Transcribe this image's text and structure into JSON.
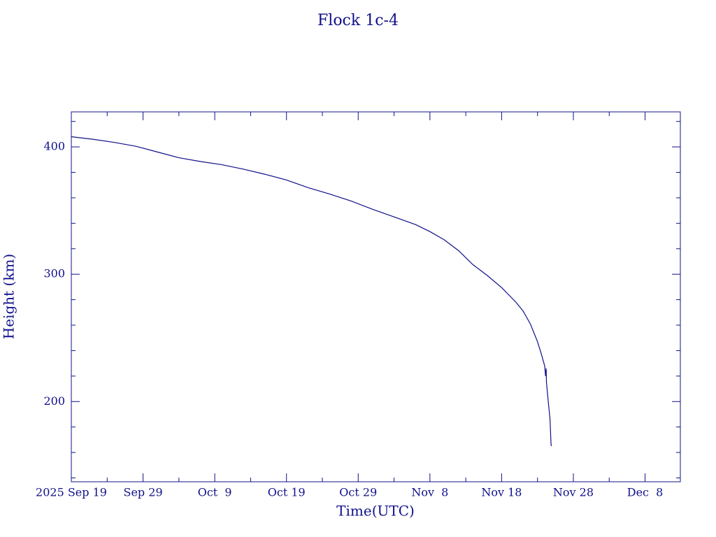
{
  "chart_data": {
    "type": "line",
    "title": "Flock 1c-4",
    "x_label": "Time(UTC)",
    "y_label": "Height (km)",
    "x": [
      "2025-09-19T00:00",
      "2025-09-22T00:00",
      "2025-09-25T00:00",
      "2025-09-28T00:00",
      "2025-10-01T00:00",
      "2025-10-04T00:00",
      "2025-10-07T00:00",
      "2025-10-10T00:00",
      "2025-10-13T00:00",
      "2025-10-16T00:00",
      "2025-10-19T00:00",
      "2025-10-22T00:00",
      "2025-10-25T00:00",
      "2025-10-28T00:00",
      "2025-10-31T00:00",
      "2025-11-03T00:00",
      "2025-11-06T00:00",
      "2025-11-08T00:00",
      "2025-11-10T00:00",
      "2025-11-12T00:00",
      "2025-11-14T00:00",
      "2025-11-16T00:00",
      "2025-11-18T00:00",
      "2025-11-20T00:00",
      "2025-11-21T00:00",
      "2025-11-22T00:00",
      "2025-11-23T00:00",
      "2025-11-23T12:00",
      "2025-11-24T00:00",
      "2025-11-24T03:00",
      "2025-11-24T05:00",
      "2025-11-24T06:00",
      "2025-11-24T12:00",
      "2025-11-24T18:00",
      "2025-11-24T21:00",
      "2025-11-24T22:00"
    ],
    "series": [
      {
        "name": "Height",
        "color": "#10108a",
        "values": [
          408,
          406,
          403.5,
          400.5,
          396,
          391.5,
          388.5,
          386,
          382.5,
          378.5,
          374,
          368,
          363,
          357.5,
          351,
          345,
          339,
          333.5,
          327,
          318.5,
          307.5,
          299,
          289.5,
          278,
          271,
          261,
          247,
          238,
          228,
          220,
          226,
          215,
          200,
          186,
          168,
          165
        ]
      }
    ],
    "xlim": [
      "2025-09-19T00:00",
      "2025-12-12T22:00"
    ],
    "xticks": [
      {
        "value": "2025-09-19T00:00",
        "label": "2025 Sep 19"
      },
      {
        "value": "2025-09-29T00:00",
        "label": "Sep 29"
      },
      {
        "value": "2025-10-09T00:00",
        "label": "Oct  9"
      },
      {
        "value": "2025-10-19T00:00",
        "label": "Oct 19"
      },
      {
        "value": "2025-10-29T00:00",
        "label": "Oct 29"
      },
      {
        "value": "2025-11-08T00:00",
        "label": "Nov  8"
      },
      {
        "value": "2025-11-18T00:00",
        "label": "Nov 18"
      },
      {
        "value": "2025-11-28T00:00",
        "label": "Nov 28"
      },
      {
        "value": "2025-12-08T00:00",
        "label": "Dec  8"
      }
    ],
    "xminorticks": [
      "2025-09-24T00:00",
      "2025-10-04T00:00",
      "2025-10-14T00:00",
      "2025-10-24T00:00",
      "2025-11-03T00:00",
      "2025-11-13T00:00",
      "2025-11-23T00:00",
      "2025-12-03T00:00"
    ],
    "ylim": [
      137,
      427.5
    ],
    "yticks": [
      200,
      300,
      400
    ],
    "yminorticks": [
      140,
      160,
      180,
      220,
      240,
      260,
      280,
      320,
      340,
      360,
      380,
      420
    ]
  }
}
